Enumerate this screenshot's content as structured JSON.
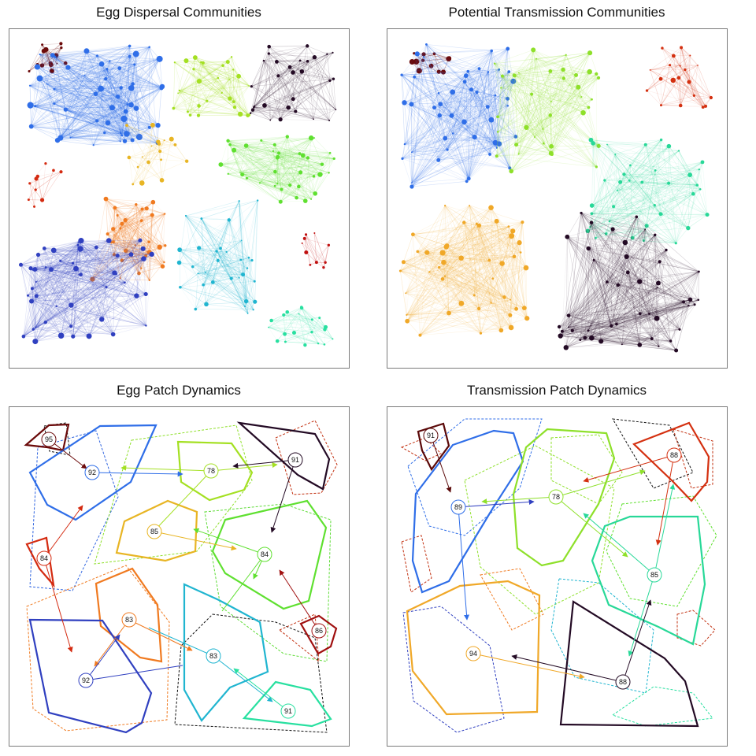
{
  "panels": [
    {
      "title": "Egg Dispersal Communities"
    },
    {
      "title": "Potential Transmission Communities"
    },
    {
      "title": "Egg Patch Dynamics"
    },
    {
      "title": "Transmission Patch Dynamics"
    }
  ],
  "egg_patch_labels": {
    "darkred_top": "95",
    "blue": "92",
    "green_top": "78",
    "dark_right": "91",
    "yellow": "85",
    "red_left": "84",
    "green_right": "84",
    "maroon_right": "86",
    "orange": "83",
    "cyan": "83",
    "navy": "92",
    "teal": "91"
  },
  "trans_patch_labels": {
    "darkred": "91",
    "blue": "89",
    "green": "78",
    "red": "88",
    "teal": "85",
    "orange": "94",
    "dark": "88"
  }
}
